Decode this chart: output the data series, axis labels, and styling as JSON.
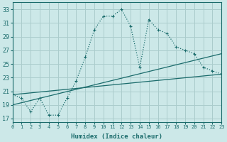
{
  "xlabel": "Humidex (Indice chaleur)",
  "xlim": [
    0,
    23
  ],
  "ylim": [
    16.5,
    34
  ],
  "yticks": [
    17,
    19,
    21,
    23,
    25,
    27,
    29,
    31,
    33
  ],
  "xticks": [
    0,
    1,
    2,
    3,
    4,
    5,
    6,
    7,
    8,
    9,
    10,
    11,
    12,
    13,
    14,
    15,
    16,
    17,
    18,
    19,
    20,
    21,
    22,
    23
  ],
  "bg_color": "#cce8e8",
  "grid_color": "#aacccc",
  "line_color": "#1a6b6b",
  "curve1_x": [
    0,
    1,
    2,
    3,
    4,
    5,
    6,
    7,
    8,
    9,
    10,
    11,
    12,
    13,
    14,
    15,
    16,
    17,
    18,
    19,
    20,
    21,
    22,
    23
  ],
  "curve1_y": [
    20.5,
    20.0,
    18.0,
    20.0,
    17.5,
    17.5,
    20.0,
    22.5,
    26.0,
    30.0,
    32.0,
    32.0,
    33.0,
    30.5,
    24.5,
    31.5,
    30.0,
    29.5,
    27.5,
    27.0,
    26.5,
    24.5,
    24.0,
    23.5
  ],
  "trend1_x": [
    0,
    23
  ],
  "trend1_y": [
    20.5,
    23.5
  ],
  "trend2_x": [
    0,
    23
  ],
  "trend2_y": [
    19.0,
    26.5
  ]
}
